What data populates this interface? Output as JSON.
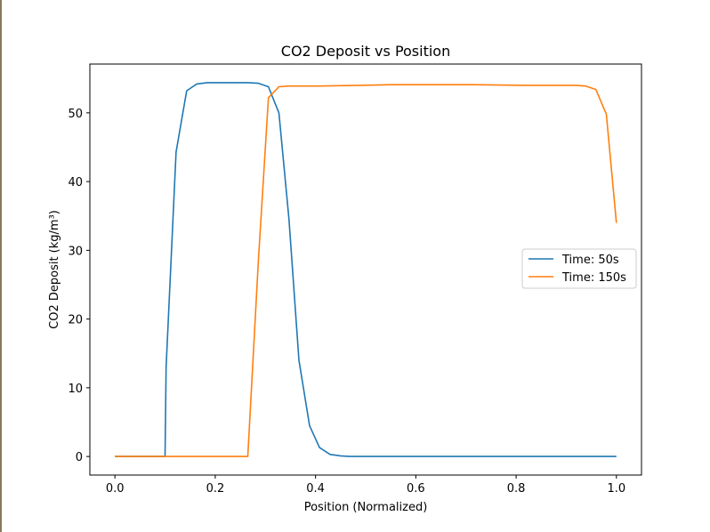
{
  "chart_data": {
    "type": "line",
    "title": "CO2 Deposit vs Position",
    "xlabel": "Position (Normalized)",
    "ylabel": "CO2 Deposit (kg/m³)",
    "xlim": [
      -0.05,
      1.05
    ],
    "ylim": [
      -2.7,
      57.1
    ],
    "xticks": [
      0.0,
      0.2,
      0.4,
      0.6,
      0.8,
      1.0
    ],
    "xtick_labels": [
      "0.0",
      "0.2",
      "0.4",
      "0.6",
      "0.8",
      "1.0"
    ],
    "yticks": [
      0,
      10,
      20,
      30,
      40,
      50
    ],
    "ytick_labels": [
      "0",
      "10",
      "20",
      "30",
      "40",
      "50"
    ],
    "grid": false,
    "legend_position": "center-right",
    "series": [
      {
        "name": "Time: 50s",
        "color": "#1f77b4",
        "x": [
          0.0,
          0.1,
          0.102,
          0.122,
          0.143,
          0.163,
          0.184,
          0.204,
          0.224,
          0.245,
          0.265,
          0.286,
          0.306,
          0.327,
          0.347,
          0.367,
          0.388,
          0.408,
          0.429,
          0.449,
          0.469,
          0.49,
          0.6,
          0.8,
          1.0
        ],
        "y": [
          0.0,
          0.0,
          13.0,
          44.3,
          53.2,
          54.2,
          54.4,
          54.4,
          54.4,
          54.4,
          54.4,
          54.3,
          53.8,
          50.0,
          34.5,
          14.0,
          4.5,
          1.3,
          0.3,
          0.1,
          0.0,
          0.0,
          0.0,
          0.0,
          0.0
        ]
      },
      {
        "name": "Time: 150s",
        "color": "#ff7f0e",
        "x": [
          0.0,
          0.1,
          0.2,
          0.265,
          0.286,
          0.306,
          0.327,
          0.347,
          0.408,
          0.49,
          0.551,
          0.612,
          0.714,
          0.816,
          0.918,
          0.939,
          0.959,
          0.98,
          1.0
        ],
        "y": [
          0.0,
          0.0,
          0.0,
          0.0,
          28.5,
          52.2,
          53.8,
          53.9,
          53.9,
          54.0,
          54.1,
          54.1,
          54.1,
          54.0,
          54.0,
          53.9,
          53.4,
          49.8,
          34.0
        ]
      }
    ]
  }
}
